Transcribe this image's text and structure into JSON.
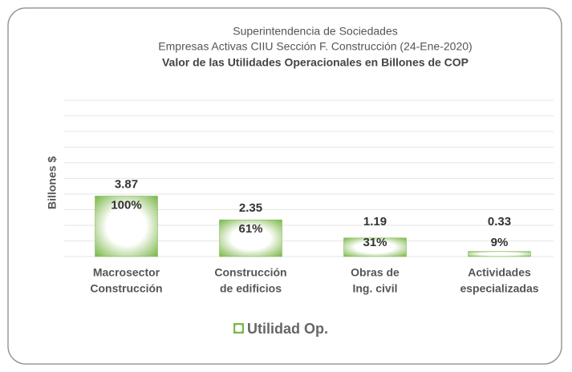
{
  "chart_data": {
    "type": "bar",
    "header": [
      "Superintendencia de Sociedades",
      "Empresas Activas CIIU Sección F. Construcción (24-Ene-2020)"
    ],
    "title": "Valor de las Utilidades Operacionales en Billones de COP",
    "y_label": "Billones $",
    "categories": [
      [
        "Macrosector",
        "Construcción"
      ],
      [
        "Construcción",
        "de edificios"
      ],
      [
        "Obras de",
        "Ing. civil"
      ],
      [
        "Actividades",
        "especializadas"
      ]
    ],
    "series": [
      {
        "name": "Utilidad Op.",
        "color": "#7ab648",
        "values": [
          3.87,
          2.35,
          1.19,
          0.33
        ],
        "percent_labels": [
          "100%",
          "61%",
          "31%",
          "9%"
        ]
      }
    ],
    "ylim": [
      0,
      10
    ],
    "yticks": [
      0,
      1,
      2,
      3,
      4,
      5,
      6,
      7,
      8,
      9,
      10
    ],
    "grid": true
  }
}
